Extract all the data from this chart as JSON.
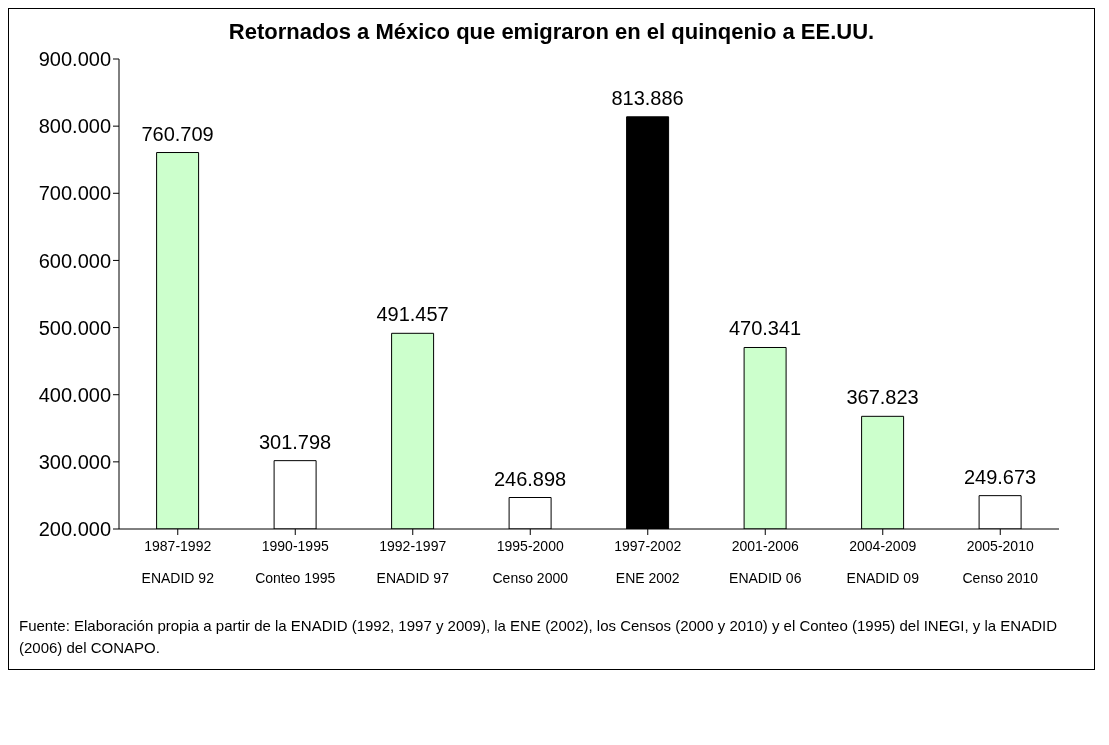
{
  "chart_data": {
    "type": "bar",
    "title": "Retornados a México que emigraron en el quinqenio a EE.UU.",
    "categories": [
      "1987-1992\nENADID 92",
      "1990-1995\nConteo 1995",
      "1992-1997\nENADID 97",
      "1995-2000\nCenso 2000",
      "1997-2002\nENE 2002",
      "2001-2006\nENADID 06",
      "2004-2009\nENADID 09",
      "2005-2010\nCenso 2010"
    ],
    "values": [
      760709,
      301798,
      491457,
      246898,
      813886,
      470341,
      367823,
      249673
    ],
    "value_labels": [
      "760.709",
      "301.798",
      "491.457",
      "246.898",
      "813.886",
      "470.341",
      "367.823",
      "249.673"
    ],
    "colors": [
      "#ccffcc",
      "#ffffff",
      "#ccffcc",
      "#ffffff",
      "#000000",
      "#ccffcc",
      "#ccffcc",
      "#ffffff"
    ],
    "ylim": [
      200000,
      900000
    ],
    "yticks": [
      {
        "value": 200000,
        "label": "200.000"
      },
      {
        "value": 300000,
        "label": "300.000"
      },
      {
        "value": 400000,
        "label": "400.000"
      },
      {
        "value": 500000,
        "label": "500.000"
      },
      {
        "value": 600000,
        "label": "600.000"
      },
      {
        "value": 700000,
        "label": "700.000"
      },
      {
        "value": 800000,
        "label": "800.000"
      },
      {
        "value": 900000,
        "label": "900.000"
      }
    ],
    "grid": false,
    "legend": false,
    "annotations": [
      "Fuente: Elaboración propia a partir de la ENADID (1992, 1997 y 2009), la ENE (2002), los Censos (2000 y 2010) y el Conteo (1995) del INEGI, y la ENADID (2006) del CONAPO."
    ]
  }
}
